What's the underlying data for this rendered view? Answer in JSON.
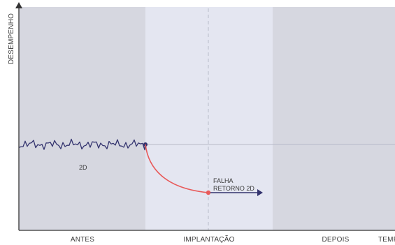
{
  "axes": {
    "y_label": "DESEMPENHO",
    "x_label": "TEMPO"
  },
  "phases": [
    {
      "label": "ANTES"
    },
    {
      "label": "IMPLANTAÇÃO"
    },
    {
      "label": "DEPOIS"
    }
  ],
  "annotations": {
    "signal_label": "2D",
    "failure_label_line1": "FALHA",
    "failure_label_line2": "RETORNO 2D"
  },
  "colors": {
    "phase_before": "#d6d7e0",
    "phase_implant": "#e4e6f1",
    "phase_after": "#d6d7e0",
    "signal": "#33336e",
    "failure_curve": "#e85a5a",
    "failure_arrow": "#33336e",
    "axis": "#333333",
    "baseline": "#b7bac8",
    "dashed_line": "#b9bcc9"
  }
}
